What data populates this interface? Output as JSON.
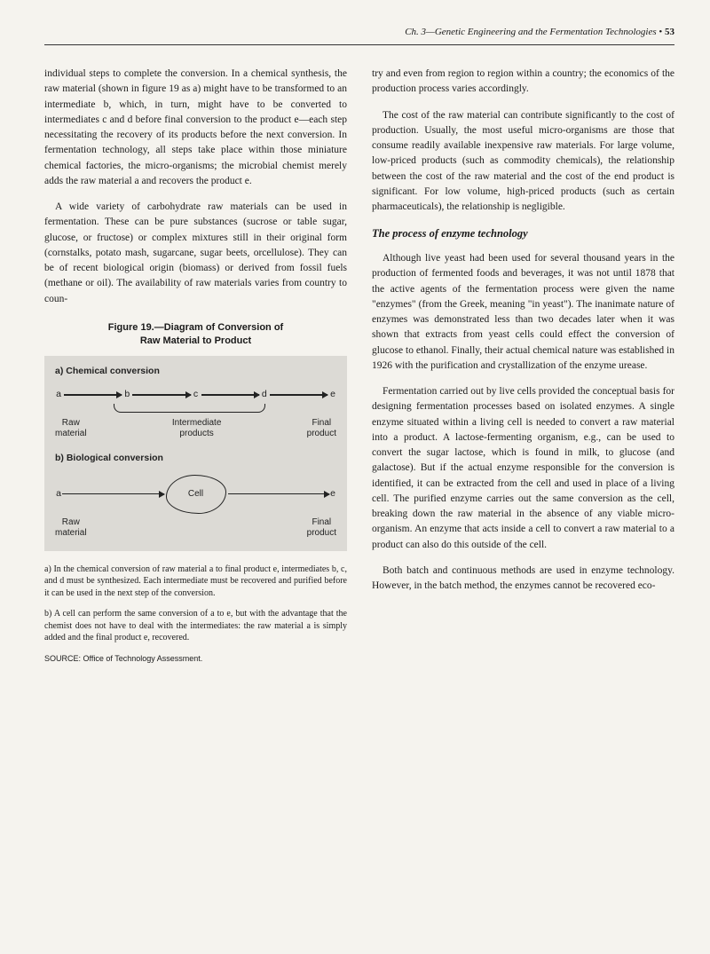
{
  "header": {
    "chapter": "Ch. 3—Genetic Engineering and the Fermentation Technologies",
    "bullet": "•",
    "page": "53"
  },
  "left": {
    "p1": "individual steps to complete the conversion. In a chemical synthesis, the raw material (shown in figure 19 as a) might have to be transformed to an intermediate b, which, in turn, might have to be converted to intermediates c and d before final conversion to the product e—each step necessitating the recovery of its products before the next conversion. In fermentation technology, all steps take place within those miniature chemical factories, the micro-organisms; the microbial chemist merely adds the raw material a and recovers the product e.",
    "p2": "A wide variety of carbohydrate raw materials can be used in fermentation. These can be pure substances (sucrose or table sugar, glucose, or fructose) or complex mixtures still in their original form (cornstalks, potato mash, sugarcane, sugar beets, orcellulose). They can be of recent biological origin (biomass) or derived from fossil fuels (methane or oil). The availability of raw materials varies from country to coun-",
    "figTitle1": "Figure 19.—Diagram of Conversion of",
    "figTitle2": "Raw Material to Product",
    "panelA": {
      "title": "a) Chemical conversion",
      "nodes": {
        "a": "a",
        "b": "b",
        "c": "c",
        "d": "d",
        "e": "e"
      },
      "raw1": "Raw",
      "raw2": "material",
      "int1": "Intermediate",
      "int2": "products",
      "fin1": "Final",
      "fin2": "product"
    },
    "panelB": {
      "title": "b) Biological conversion",
      "a": "a",
      "cell": "Cell",
      "e": "e",
      "raw1": "Raw",
      "raw2": "material",
      "fin1": "Final",
      "fin2": "product"
    },
    "capA_label": "a)",
    "capA": " In the chemical conversion of raw material a to final product e, intermediates b, c, and d must be synthesized. Each intermediate must be recovered and purified before it can be used in the next step of the conversion.",
    "capB_label": "b)",
    "capB": " A cell can perform the same conversion of a to e, but with the advantage that the chemist does not have to deal with the intermediates: the raw material a is simply added and the final product e, recovered.",
    "source": "SOURCE: Office of Technology Assessment."
  },
  "right": {
    "p1": "try and even from region to region within a country; the economics of the production process varies accordingly.",
    "p2": "The cost of the raw material can contribute significantly to the cost of production. Usually, the most useful micro-organisms are those that consume readily available inexpensive raw materials. For large volume, low-priced products (such as commodity chemicals), the relationship between the cost of the raw material and the cost of the end product is significant. For low volume, high-priced products (such as certain pharmaceuticals), the relationship is negligible.",
    "subhead": "The process of enzyme technology",
    "p3": "Although live yeast had been used for several thousand years in the production of fermented foods and beverages, it was not until 1878 that the active agents of the fermentation process were given the name \"enzymes\" (from the Greek, meaning \"in yeast\"). The inanimate nature of enzymes was demonstrated less than two decades later when it was shown that extracts from yeast cells could effect the conversion of glucose to ethanol. Finally, their actual chemical nature was established in 1926 with the purification and crystallization of the enzyme urease.",
    "p4": "Fermentation carried out by live cells provided the conceptual basis for designing fermentation processes based on isolated enzymes. A single enzyme situated within a living cell is needed to convert a raw material into a product. A lactose-fermenting organism, e.g., can be used to convert the sugar lactose, which is found in milk, to glucose (and galactose). But if the actual enzyme responsible for the conversion is identified, it can be extracted from the cell and used in place of a living cell. The purified enzyme carries out the same conversion as the cell, breaking down the raw material in the absence of any viable micro-organism. An enzyme that acts inside a cell to convert a raw material to a product can also do this outside of the cell.",
    "p5": "Both batch and continuous methods are used in enzyme technology. However, in the batch method, the enzymes cannot be recovered eco-"
  }
}
